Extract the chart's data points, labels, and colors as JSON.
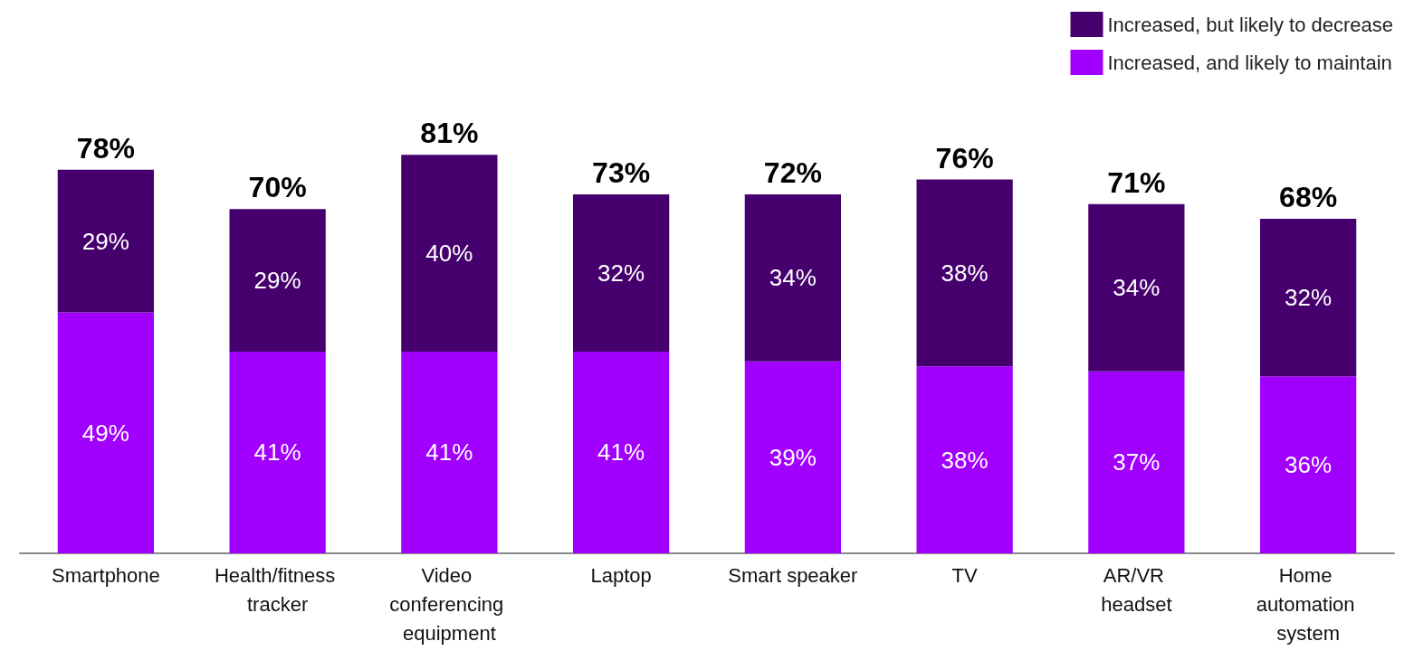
{
  "chart_data": {
    "type": "bar",
    "stacked": true,
    "categories": [
      "Smartphone",
      "Health/fitness tracker",
      "Video conferencing equipment",
      "Laptop",
      "Smart speaker",
      "TV",
      "AR/VR headset",
      "Home automation system"
    ],
    "series": [
      {
        "name": "Increased, and likely to maintain",
        "color": "#a100ff",
        "values": [
          49,
          41,
          41,
          41,
          39,
          38,
          37,
          36
        ],
        "value_labels": [
          "49%",
          "41%",
          "41%",
          "41%",
          "39%",
          "38%",
          "37%",
          "36%"
        ]
      },
      {
        "name": "Increased, but likely to decrease",
        "color": "#46006e",
        "values": [
          29,
          29,
          40,
          32,
          34,
          38,
          34,
          32
        ],
        "value_labels": [
          "29%",
          "29%",
          "40%",
          "32%",
          "34%",
          "38%",
          "34%",
          "32%"
        ]
      }
    ],
    "totals": [
      "78%",
      "70%",
      "81%",
      "73%",
      "72%",
      "76%",
      "71%",
      "68%"
    ],
    "legend": "top right",
    "tick_labels": "x"
  }
}
